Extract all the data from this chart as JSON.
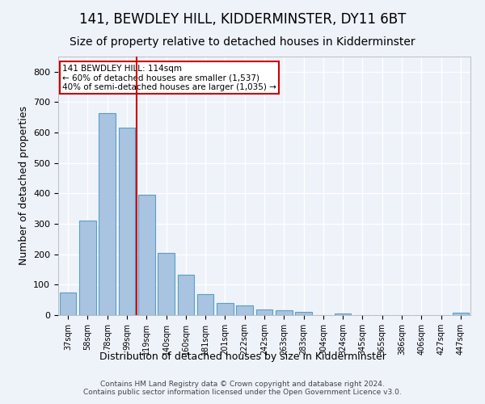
{
  "title": "141, BEWDLEY HILL, KIDDERMINSTER, DY11 6BT",
  "subtitle": "Size of property relative to detached houses in Kidderminster",
  "xlabel": "Distribution of detached houses by size in Kidderminster",
  "ylabel": "Number of detached properties",
  "categories": [
    "37sqm",
    "58sqm",
    "78sqm",
    "99sqm",
    "119sqm",
    "140sqm",
    "160sqm",
    "181sqm",
    "201sqm",
    "222sqm",
    "242sqm",
    "263sqm",
    "283sqm",
    "304sqm",
    "324sqm",
    "345sqm",
    "365sqm",
    "386sqm",
    "406sqm",
    "427sqm",
    "447sqm"
  ],
  "values": [
    75,
    312,
    665,
    615,
    397,
    204,
    133,
    70,
    40,
    33,
    18,
    15,
    10,
    0,
    6,
    0,
    0,
    0,
    0,
    0,
    7
  ],
  "bar_color": "#a8c4e0",
  "bar_edge_color": "#5a9ec9",
  "vline_color": "#cc0000",
  "annotation_text": "141 BEWDLEY HILL: 114sqm\n← 60% of detached houses are smaller (1,537)\n40% of semi-detached houses are larger (1,035) →",
  "annotation_box_color": "#ffffff",
  "annotation_box_edge": "#cc0000",
  "ylim": [
    0,
    850
  ],
  "yticks": [
    0,
    100,
    200,
    300,
    400,
    500,
    600,
    700,
    800
  ],
  "footer": "Contains HM Land Registry data © Crown copyright and database right 2024.\nContains public sector information licensed under the Open Government Licence v3.0.",
  "bg_color": "#eef2f9",
  "grid_color": "#ffffff",
  "title_fontsize": 12,
  "subtitle_fontsize": 10,
  "xlabel_fontsize": 9,
  "ylabel_fontsize": 9
}
